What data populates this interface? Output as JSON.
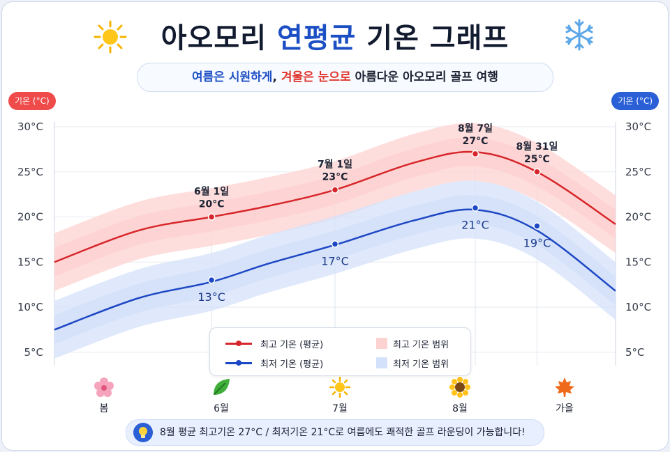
{
  "header": {
    "title_pre": "아오모리 ",
    "title_accent": "연평균",
    "title_post": " 기온 그래프",
    "subtitle_summer": "여름은 시원하게",
    "subtitle_comma": ", ",
    "subtitle_winter": "겨울은 눈으로",
    "subtitle_rest": " 아름다운 아오모리 골프 여행"
  },
  "axis_badges": {
    "left": "기온 (°C)",
    "right": "기온 (°C)"
  },
  "legend": {
    "high_avg": "최고 기온 (평균)",
    "low_avg": "최저 기온 (평균)",
    "high_range": "최고 기온 범위",
    "low_range": "최저 기온 범위"
  },
  "seasons": [
    {
      "label": "봄",
      "icon": "cherry-blossom-icon"
    },
    {
      "label": "6월",
      "icon": "leaf-icon"
    },
    {
      "label": "7월",
      "icon": "sun-icon"
    },
    {
      "label": "8월",
      "icon": "sunflower-icon"
    },
    {
      "label": "가을",
      "icon": "maple-leaf-icon"
    }
  ],
  "footer": {
    "text": "8월 평균 최고기온 27°C / 최저기온 21°C로 여름에도 쾌적한 골프 라운딩이 가능합니다!",
    "icon": "lightbulb-icon"
  },
  "colors": {
    "high": "#d7262b",
    "low": "#1d47c4",
    "high_band": "#fdd3d2",
    "low_band": "#d4e1fa",
    "accent": "#1d4fc4",
    "accent_red": "#e0342c"
  },
  "chart_data": {
    "type": "line",
    "ylim": [
      3,
      31
    ],
    "yticks": [
      "5°C",
      "10°C",
      "15°C",
      "20°C",
      "25°C",
      "30°C"
    ],
    "ytick_values": [
      5,
      10,
      15,
      20,
      25,
      30
    ],
    "grid": true,
    "legend_position": "bottom-center",
    "series": [
      {
        "name": "최고 기온 (평균)",
        "x": [
          0,
          0.15,
          0.28,
          0.38,
          0.5,
          0.64,
          0.75,
          0.86,
          1.0
        ],
        "values": [
          15.0,
          18.5,
          20.0,
          21.2,
          23.0,
          26.0,
          27.2,
          25.0,
          19.2
        ]
      },
      {
        "name": "최저 기온 (평균)",
        "x": [
          0,
          0.15,
          0.28,
          0.38,
          0.5,
          0.64,
          0.75,
          0.86,
          1.0
        ],
        "values": [
          7.5,
          11.0,
          12.8,
          14.8,
          16.9,
          19.6,
          20.8,
          18.5,
          11.8
        ]
      }
    ],
    "points": [
      {
        "series": 0,
        "x": 0.28,
        "value": 20,
        "date": "6월 1일",
        "label": "20°C"
      },
      {
        "series": 0,
        "x": 0.5,
        "value": 23,
        "date": "7월 1일",
        "label": "23°C"
      },
      {
        "series": 0,
        "x": 0.75,
        "value": 27,
        "date": "8월 7일",
        "label": "27°C"
      },
      {
        "series": 0,
        "x": 0.86,
        "value": 25,
        "date": "8월 31일",
        "label": "25°C"
      },
      {
        "series": 1,
        "x": 0.28,
        "value": 13,
        "label": "13°C"
      },
      {
        "series": 1,
        "x": 0.5,
        "value": 17,
        "label": "17°C"
      },
      {
        "series": 1,
        "x": 0.75,
        "value": 21,
        "label": "21°C"
      },
      {
        "series": 1,
        "x": 0.86,
        "value": 19,
        "label": "19°C"
      }
    ]
  }
}
